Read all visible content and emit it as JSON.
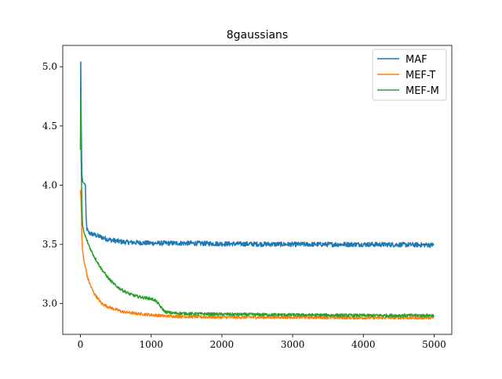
{
  "chart_data": {
    "type": "line",
    "title": "8gaussians",
    "xlabel": "",
    "ylabel": "",
    "xlim": [
      -250,
      5250
    ],
    "ylim": [
      2.74,
      5.18
    ],
    "xticks": [
      0,
      1000,
      2000,
      3000,
      4000,
      5000
    ],
    "xtick_labels": [
      "0",
      "1000",
      "2000",
      "3000",
      "4000",
      "5000"
    ],
    "yticks": [
      3.0,
      3.5,
      4.0,
      4.5,
      5.0
    ],
    "ytick_labels": [
      "3.0",
      "3.5",
      "4.0",
      "4.5",
      "5.0"
    ],
    "grid": false,
    "legend_position": "top-right",
    "series": [
      {
        "name": "MAF",
        "color": "#1f77b4",
        "x": [
          0,
          5,
          10,
          20,
          30,
          40,
          60,
          70,
          80,
          90,
          100,
          110,
          150,
          200,
          300,
          400,
          500,
          600,
          800,
          1000,
          1500,
          2000,
          3000,
          4000,
          5000
        ],
        "y": [
          4.3,
          5.04,
          4.6,
          4.1,
          4.03,
          4.02,
          4.01,
          4.0,
          3.72,
          3.64,
          3.62,
          3.6,
          3.59,
          3.58,
          3.56,
          3.54,
          3.53,
          3.52,
          3.515,
          3.51,
          3.51,
          3.505,
          3.5,
          3.5,
          3.495
        ],
        "noise": 0.02
      },
      {
        "name": "MEF-T",
        "color": "#ff7f0e",
        "x": [
          0,
          10,
          20,
          30,
          50,
          80,
          100,
          150,
          200,
          250,
          300,
          400,
          500,
          600,
          800,
          1000,
          1200,
          1500,
          2000,
          3000,
          4000,
          5000
        ],
        "y": [
          3.96,
          3.85,
          3.55,
          3.45,
          3.36,
          3.28,
          3.22,
          3.14,
          3.08,
          3.04,
          3.0,
          2.97,
          2.95,
          2.93,
          2.915,
          2.905,
          2.895,
          2.89,
          2.885,
          2.885,
          2.88,
          2.88
        ],
        "noise": 0.012
      },
      {
        "name": "MEF-M",
        "color": "#2ca02c",
        "x": [
          0,
          5,
          10,
          20,
          30,
          50,
          100,
          150,
          200,
          300,
          400,
          500,
          600,
          700,
          800,
          900,
          1000,
          1050,
          1100,
          1150,
          1200,
          1300,
          1500,
          2000,
          3000,
          4000,
          5000
        ],
        "y": [
          4.3,
          4.76,
          4.2,
          3.85,
          3.66,
          3.6,
          3.52,
          3.45,
          3.39,
          3.29,
          3.21,
          3.15,
          3.11,
          3.08,
          3.06,
          3.05,
          3.04,
          3.03,
          3.0,
          2.96,
          2.93,
          2.92,
          2.915,
          2.91,
          2.905,
          2.9,
          2.9
        ],
        "noise": 0.012
      }
    ]
  }
}
